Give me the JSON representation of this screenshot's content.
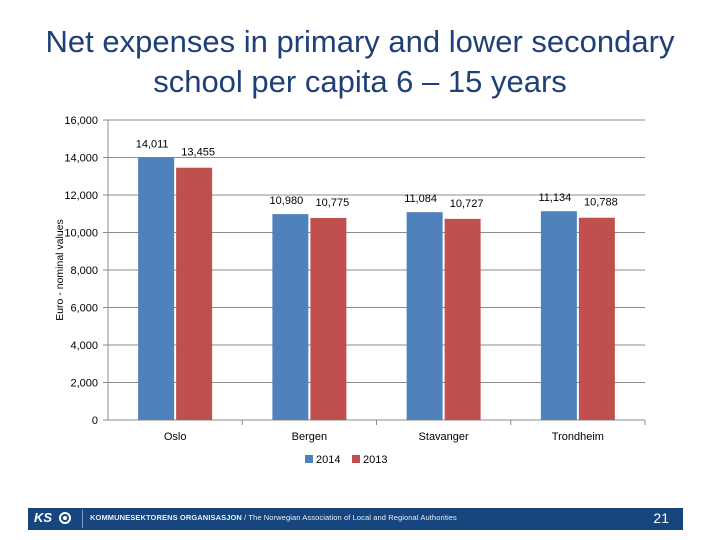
{
  "slide": {
    "title_line1": "Net expenses in primary and lower secondary",
    "title_line2": "school per capita 6 – 15 years",
    "page_number": "21"
  },
  "footer": {
    "logo_text": "KS",
    "org_name": "KOMMUNESEKTORENS ORGANISASJON",
    "org_english": "/ The Norwegian Association of Local and Regional Authorities",
    "bar_color": "#17467f"
  },
  "chart_data": {
    "type": "bar",
    "categories": [
      "Oslo",
      "Bergen",
      "Stavanger",
      "Trondheim"
    ],
    "series": [
      {
        "name": "2014",
        "color": "#4f81bd",
        "values": [
          14011,
          10980,
          11084,
          11134
        ],
        "labels": [
          "14,011",
          "10,980",
          "11,084",
          "11,134"
        ]
      },
      {
        "name": "2013",
        "color": "#c0504d",
        "values": [
          13455,
          10775,
          10727,
          10788
        ],
        "labels": [
          "13,455",
          "10,775",
          "10,727",
          "10,788"
        ]
      }
    ],
    "ylabel": "Euro - nominal values",
    "xlabel": "",
    "ylim": [
      0,
      16000
    ],
    "yticks": [
      0,
      2000,
      4000,
      6000,
      8000,
      10000,
      12000,
      14000,
      16000
    ],
    "ytick_labels": [
      "0",
      "2,000",
      "4,000",
      "6,000",
      "8,000",
      "10,000",
      "12,000",
      "14,000",
      "16,000"
    ],
    "grid": true,
    "legend_position": "bottom"
  }
}
